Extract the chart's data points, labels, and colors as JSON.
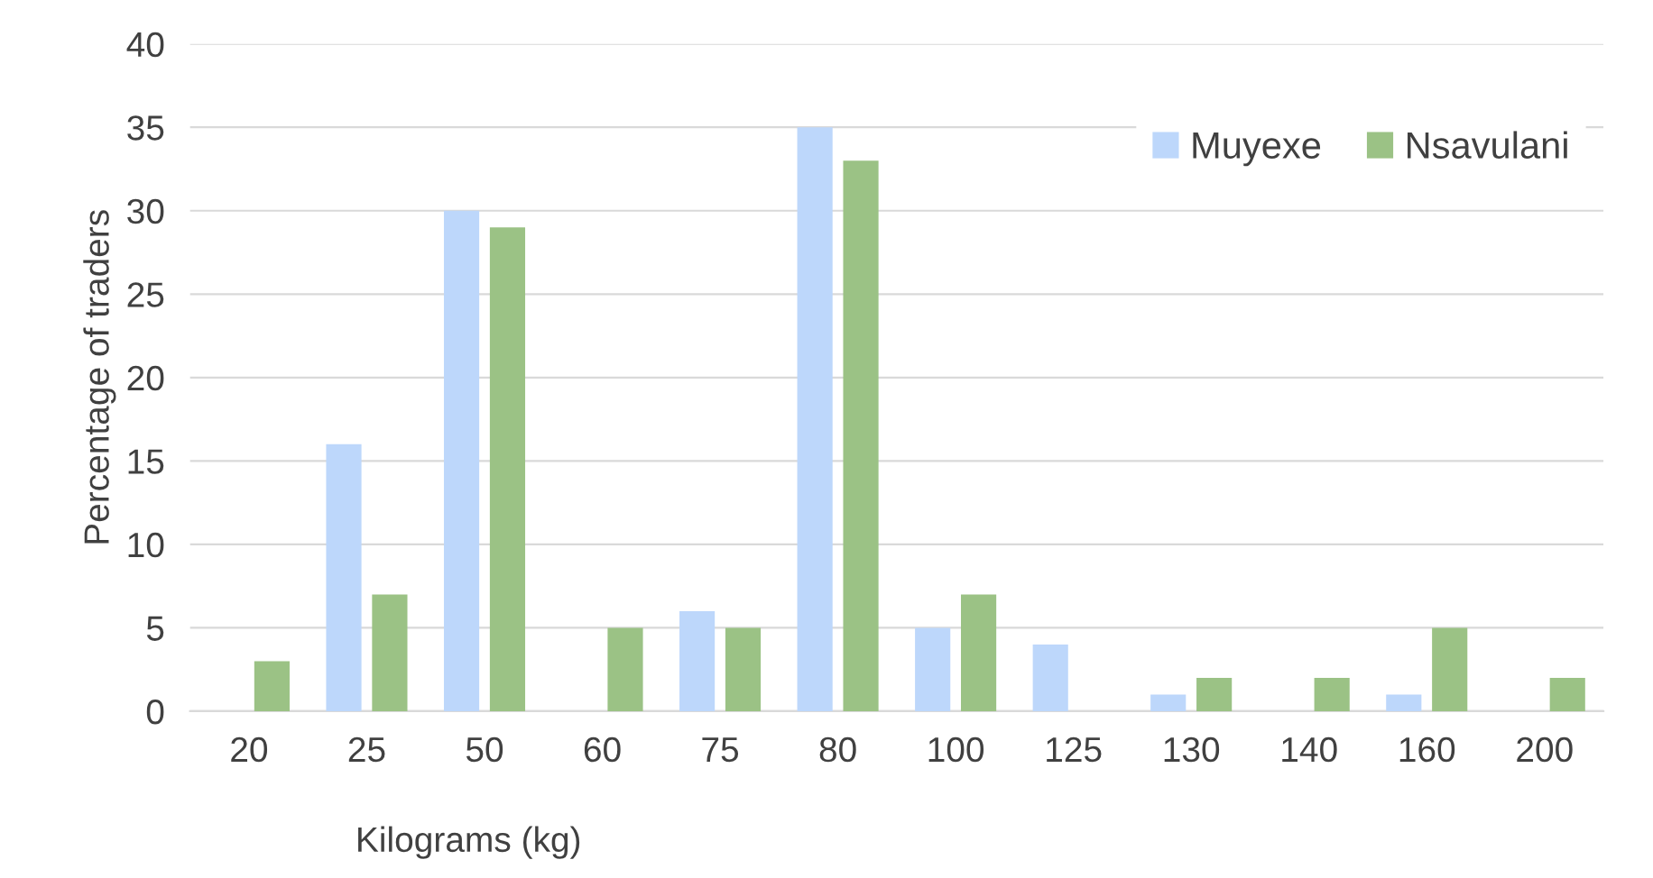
{
  "chart_data": {
    "type": "bar",
    "xlabel": "Kilograms (kg)",
    "ylabel": "Percentage of traders",
    "categories": [
      "20",
      "25",
      "50",
      "60",
      "75",
      "80",
      "100",
      "125",
      "130",
      "140",
      "160",
      "200"
    ],
    "series": [
      {
        "name": "Muyexe",
        "color": "#bdd7fb",
        "values": [
          0,
          16,
          30,
          0,
          6,
          35,
          5,
          4,
          1,
          0,
          1,
          0
        ]
      },
      {
        "name": "Nsavulani",
        "color": "#9bc285",
        "values": [
          3,
          7,
          29,
          5,
          5,
          33,
          7,
          0,
          2,
          2,
          5,
          2
        ]
      }
    ],
    "ylim": [
      0,
      40
    ],
    "yticks": [
      0,
      5,
      10,
      15,
      20,
      25,
      30,
      35,
      40
    ],
    "grid": "y",
    "legend": "top right"
  }
}
